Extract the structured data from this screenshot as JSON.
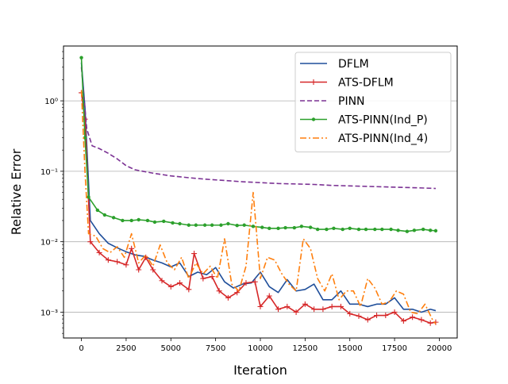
{
  "chart_data": {
    "type": "line",
    "title": "",
    "xlabel": "Iteration",
    "ylabel": "Relative Error",
    "yscale": "log",
    "xlim": [
      -1000,
      21000
    ],
    "ylim": [
      0.00043,
      6.0
    ],
    "xticks": [
      0,
      2500,
      5000,
      7500,
      10000,
      12500,
      15000,
      17500,
      20000
    ],
    "xtick_labels": [
      "0",
      "2500",
      "5000",
      "7500",
      "10000",
      "12500",
      "15000",
      "17500",
      "20000"
    ],
    "yticks": [
      0.001,
      0.01,
      0.1,
      1
    ],
    "ytick_labels": [
      "10⁻³",
      "10⁻²",
      "10⁻¹",
      "10⁰"
    ],
    "grid": "y-major",
    "legend_position": "upper right",
    "series": [
      {
        "name": "DFLM",
        "color": "#1f4e9a",
        "line_style": "solid",
        "marker": "none",
        "x": [
          0,
          200,
          500,
          1000,
          1500,
          2000,
          2500,
          3000,
          3500,
          4000,
          4500,
          5000,
          5500,
          6000,
          6500,
          7000,
          7500,
          8000,
          8500,
          9000,
          9500,
          10000,
          10500,
          11000,
          11500,
          12000,
          12500,
          13000,
          13500,
          14000,
          14500,
          15000,
          15500,
          16000,
          16500,
          17000,
          17500,
          18000,
          18500,
          19000,
          19500,
          19800
        ],
        "y": [
          3.5,
          0.8,
          0.02,
          0.013,
          0.0095,
          0.0082,
          0.0072,
          0.0065,
          0.0062,
          0.0055,
          0.005,
          0.0044,
          0.005,
          0.0032,
          0.0037,
          0.0034,
          0.0043,
          0.0027,
          0.0022,
          0.0025,
          0.0026,
          0.0037,
          0.0023,
          0.0019,
          0.0029,
          0.002,
          0.0021,
          0.0025,
          0.0015,
          0.0015,
          0.002,
          0.0013,
          0.0013,
          0.0012,
          0.0013,
          0.0013,
          0.0016,
          0.0011,
          0.0011,
          0.001,
          0.0011,
          0.00105
        ]
      },
      {
        "name": "ATS-DFLM",
        "color": "#d62728",
        "line_style": "solid",
        "marker": "plus",
        "x": [
          0,
          200,
          500,
          1000,
          1500,
          2000,
          2500,
          2800,
          3200,
          3600,
          4000,
          4500,
          5000,
          5500,
          6000,
          6300,
          6800,
          7300,
          7700,
          8200,
          8700,
          9200,
          9700,
          10000,
          10500,
          11000,
          11500,
          12000,
          12500,
          13000,
          13500,
          14000,
          14500,
          15000,
          15500,
          16000,
          16500,
          17000,
          17500,
          18000,
          18500,
          19000,
          19500,
          19800
        ],
        "y": [
          1.3,
          0.55,
          0.01,
          0.007,
          0.0055,
          0.0052,
          0.0047,
          0.008,
          0.004,
          0.006,
          0.004,
          0.0028,
          0.0023,
          0.0026,
          0.0021,
          0.0068,
          0.003,
          0.0032,
          0.002,
          0.0016,
          0.0019,
          0.0026,
          0.0027,
          0.0012,
          0.0017,
          0.0011,
          0.0012,
          0.001,
          0.0013,
          0.0011,
          0.0011,
          0.0012,
          0.0012,
          0.00095,
          0.00088,
          0.00078,
          0.0009,
          0.0009,
          0.001,
          0.00075,
          0.00085,
          0.00078,
          0.0007,
          0.00072
        ]
      },
      {
        "name": "PINN",
        "color": "#7b3294",
        "line_style": "dashed",
        "marker": "none",
        "x": [
          0,
          300,
          600,
          1000,
          1500,
          2000,
          2500,
          3000,
          4000,
          5000,
          6000,
          7000,
          8000,
          9000,
          10000,
          11000,
          12000,
          13000,
          14000,
          15000,
          16000,
          17000,
          18000,
          19000,
          19800
        ],
        "y": [
          3.0,
          0.4,
          0.23,
          0.21,
          0.18,
          0.15,
          0.12,
          0.105,
          0.094,
          0.086,
          0.081,
          0.077,
          0.074,
          0.071,
          0.069,
          0.067,
          0.066,
          0.065,
          0.063,
          0.062,
          0.061,
          0.06,
          0.059,
          0.058,
          0.057
        ]
      },
      {
        "name": "ATS-PINN(Ind_P)",
        "color": "#2ca02c",
        "line_style": "solid",
        "marker": "dot",
        "x": [
          0,
          200,
          400,
          900,
          1300,
          1800,
          2300,
          2800,
          3200,
          3700,
          4100,
          4600,
          5100,
          5500,
          6000,
          6400,
          6900,
          7300,
          7800,
          8200,
          8700,
          9100,
          9600,
          10100,
          10500,
          11000,
          11400,
          11900,
          12300,
          12800,
          13200,
          13700,
          14100,
          14600,
          15000,
          15500,
          15900,
          16400,
          16800,
          17300,
          17700,
          18200,
          18600,
          19100,
          19500,
          19800
        ],
        "y": [
          4.1,
          0.3,
          0.043,
          0.028,
          0.024,
          0.022,
          0.02,
          0.02,
          0.0205,
          0.02,
          0.019,
          0.0195,
          0.0185,
          0.018,
          0.0172,
          0.0172,
          0.0172,
          0.0172,
          0.0172,
          0.018,
          0.017,
          0.0172,
          0.0165,
          0.016,
          0.0155,
          0.0155,
          0.0158,
          0.0158,
          0.0165,
          0.016,
          0.015,
          0.015,
          0.0155,
          0.015,
          0.0155,
          0.015,
          0.015,
          0.015,
          0.015,
          0.015,
          0.0145,
          0.014,
          0.0145,
          0.015,
          0.0145,
          0.0143
        ]
      },
      {
        "name": "ATS-PINN(Ind_4)",
        "color": "#ff7f0e",
        "line_style": "dashdot",
        "marker": "none",
        "x": [
          0,
          200,
          400,
          800,
          1200,
          1600,
          2000,
          2400,
          2800,
          3200,
          3600,
          4000,
          4400,
          4800,
          5200,
          5600,
          6000,
          6400,
          6800,
          7200,
          7600,
          8000,
          8400,
          8800,
          9200,
          9600,
          10000,
          10400,
          10800,
          11200,
          11600,
          12000,
          12400,
          12800,
          13200,
          13600,
          14000,
          14400,
          14800,
          15200,
          15600,
          16000,
          16400,
          16800,
          17200,
          17600,
          18000,
          18400,
          18800,
          19200,
          19600,
          19800
        ],
        "y": [
          1.4,
          0.1,
          0.013,
          0.012,
          0.008,
          0.007,
          0.0085,
          0.006,
          0.013,
          0.005,
          0.0065,
          0.0045,
          0.009,
          0.005,
          0.004,
          0.006,
          0.003,
          0.005,
          0.0035,
          0.0045,
          0.003,
          0.011,
          0.0025,
          0.002,
          0.0045,
          0.05,
          0.003,
          0.006,
          0.0055,
          0.0035,
          0.0025,
          0.002,
          0.011,
          0.008,
          0.003,
          0.002,
          0.0035,
          0.0015,
          0.002,
          0.002,
          0.0012,
          0.003,
          0.0022,
          0.0013,
          0.0014,
          0.002,
          0.0018,
          0.001,
          0.00095,
          0.0013,
          0.0008,
          0.00068
        ]
      }
    ]
  }
}
